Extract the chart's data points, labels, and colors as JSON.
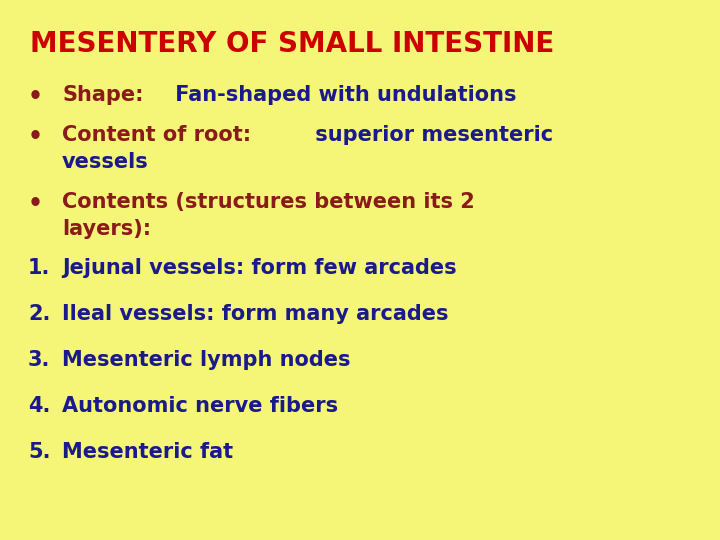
{
  "title": "MESENTERY OF SMALL INTESTINE",
  "title_color": "#cc0000",
  "background_color": "#f5f577",
  "bullet_label_color": "#8b1a1a",
  "bullet_value_color": "#1a1a8b",
  "number_color": "#1a1a8b",
  "font_size_title": 20,
  "font_size_body": 15,
  "bullet_lines": [
    [
      {
        "text": "Shape:",
        "color": "#8b1a1a"
      },
      {
        "text": " Fan-shaped with undulations",
        "color": "#1a1a8b"
      }
    ],
    [
      {
        "text": "Content of root:",
        "color": "#8b1a1a"
      },
      {
        "text": " superior mesenteric",
        "color": "#1a1a8b"
      }
    ],
    [
      {
        "text": "vessels",
        "color": "#1a1a8b",
        "indent": true
      }
    ],
    [
      {
        "text": "Contents (structures between its 2",
        "color": "#8b1a1a"
      }
    ],
    [
      {
        "text": "layers):",
        "color": "#8b1a1a",
        "indent": true
      }
    ]
  ],
  "numbered_items": [
    "Jejunal vessels: form few arcades",
    "Ileal vessels: form many arcades",
    "Mesenteric lymph nodes",
    "Autonomic nerve fibers",
    "Mesenteric fat"
  ]
}
